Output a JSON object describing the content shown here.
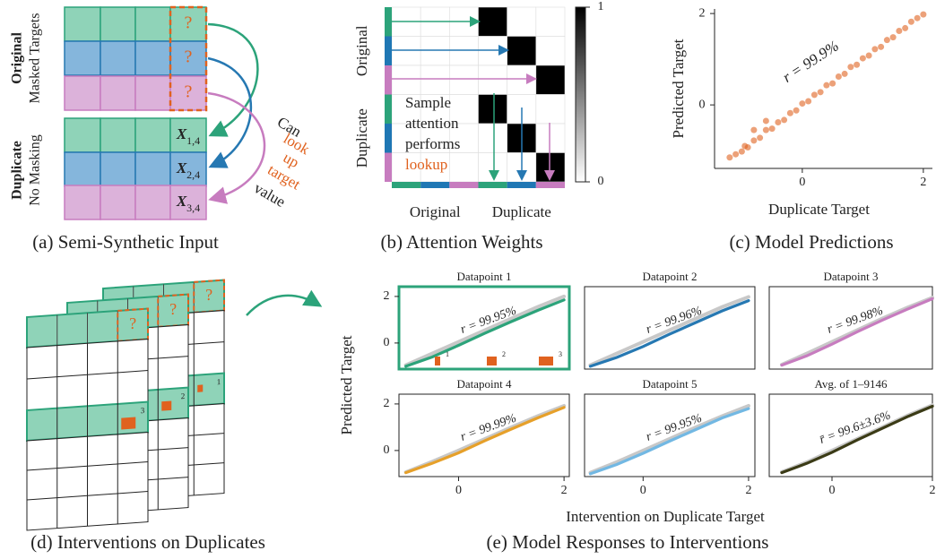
{
  "panel_a": {
    "caption": "(a) Semi-Synthetic Input",
    "group_labels": [
      {
        "bold": "Original",
        "sub": "Masked Targets"
      },
      {
        "bold": "Duplicate",
        "sub": "No Masking"
      }
    ],
    "masked": [
      "?",
      "?",
      "?"
    ],
    "cells": [
      {
        "symbol": "X",
        "sub": "1,4"
      },
      {
        "symbol": "X",
        "sub": "2,4"
      },
      {
        "symbol": "X",
        "sub": "3,4"
      }
    ],
    "annotation": [
      "Can",
      "look",
      "up",
      "target",
      "value"
    ]
  },
  "panel_b": {
    "caption": "(b) Attention Weights",
    "annotation": [
      "Sample",
      "attention",
      "performs",
      "lookup"
    ]
  },
  "panel_c": {
    "caption": "(c) Model Predictions"
  },
  "panel_d": {
    "caption": "(d) Interventions on Duplicates",
    "masked": [
      "?",
      "?",
      "?"
    ],
    "intervention_labels": [
      "1",
      "2",
      "3"
    ]
  },
  "panel_e": {
    "caption": "(e) Model Responses to Interventions",
    "ylabel": "Predicted Target",
    "xlabel": "Intervention on Duplicate Target"
  },
  "chart_data": [
    {
      "type": "heatmap",
      "y_groups": [
        "Original",
        "Duplicate"
      ],
      "x_groups": [
        "Original",
        "Duplicate"
      ],
      "values": [
        [
          0,
          0,
          0,
          1,
          0,
          0
        ],
        [
          0,
          0,
          0,
          0,
          1,
          0
        ],
        [
          0,
          0,
          0,
          0,
          0,
          1
        ],
        [
          0,
          0,
          0,
          1,
          0,
          0
        ],
        [
          0,
          0,
          0,
          0,
          1,
          0
        ],
        [
          0,
          0,
          0,
          0,
          0,
          1
        ]
      ],
      "strip_colors": [
        "#2ca37a",
        "#1f77b4",
        "#c77cbf",
        "#2ca37a",
        "#1f77b4",
        "#c77cbf"
      ],
      "clim": [
        0,
        1
      ],
      "cticks": [
        0,
        1
      ]
    },
    {
      "type": "scatter",
      "xlabel": "Duplicate Target",
      "ylabel": "Predicted Target",
      "annotation": "r = 99.9%",
      "color": "#e0621f",
      "x": [
        -1.2,
        -1.1,
        -1.0,
        -0.95,
        -0.9,
        -0.8,
        -0.7,
        -0.6,
        -0.5,
        -0.4,
        -0.3,
        -0.2,
        -0.1,
        0.0,
        0.1,
        0.2,
        0.3,
        0.4,
        0.5,
        0.6,
        0.7,
        0.8,
        0.9,
        1.0,
        1.1,
        1.2,
        1.3,
        1.4,
        1.5,
        1.6,
        1.7,
        1.8,
        1.9,
        2.0,
        -0.8,
        -0.6
      ],
      "values": [
        -1.15,
        -1.08,
        -1.02,
        -0.9,
        -0.93,
        -0.78,
        -0.72,
        -0.55,
        -0.52,
        -0.38,
        -0.33,
        -0.18,
        -0.12,
        0.03,
        0.08,
        0.22,
        0.28,
        0.43,
        0.47,
        0.62,
        0.68,
        0.83,
        0.88,
        1.02,
        1.08,
        1.22,
        1.27,
        1.42,
        1.48,
        1.62,
        1.68,
        1.82,
        1.9,
        1.98,
        -0.55,
        -0.35
      ],
      "xlim": [
        -1.45,
        2.15
      ],
      "ylim": [
        -1.39,
        2.1
      ],
      "xticks": [
        0,
        2
      ],
      "yticks": [
        0,
        2
      ]
    },
    {
      "type": "line",
      "title": "Datapoint 1",
      "annotation": "r = 99.95%",
      "highlight": "#2ca37a",
      "markers": [
        "1",
        "2",
        "3"
      ],
      "x": [
        -1,
        -0.5,
        0,
        0.5,
        1,
        1.5,
        2
      ],
      "xlim": [
        -1.13,
        2.1
      ],
      "ylim": [
        -1.12,
        2.42
      ],
      "yticks": [
        0,
        2
      ],
      "series": [
        {
          "color": "#c8c8c8",
          "values": [
            -0.95,
            -0.45,
            0.05,
            0.55,
            1.05,
            1.55,
            2.0
          ]
        },
        {
          "color": "#2ca37a",
          "values": [
            -1.0,
            -0.6,
            -0.1,
            0.42,
            0.92,
            1.4,
            1.85
          ]
        }
      ]
    },
    {
      "type": "line",
      "title": "Datapoint 2",
      "annotation": "r = 99.96%",
      "x": [
        -1,
        -0.5,
        0,
        0.5,
        1,
        1.5,
        2
      ],
      "xlim": [
        -1.11,
        2.12
      ],
      "ylim": [
        -1.12,
        2.42
      ],
      "series": [
        {
          "color": "#c8c8c8",
          "values": [
            -0.95,
            -0.45,
            0.05,
            0.55,
            1.05,
            1.55,
            1.98
          ]
        },
        {
          "color": "#2678b2",
          "values": [
            -1.0,
            -0.62,
            -0.15,
            0.38,
            0.88,
            1.38,
            1.82
          ]
        }
      ]
    },
    {
      "type": "line",
      "title": "Datapoint 3",
      "annotation": "r = 99.98%",
      "x": [
        -1,
        -0.5,
        0,
        0.5,
        1,
        1.5,
        2
      ],
      "xlim": [
        -1.25,
        2.0
      ],
      "ylim": [
        -1.12,
        2.42
      ],
      "series": [
        {
          "color": "#c8c8c8",
          "values": [
            -0.93,
            -0.45,
            0.05,
            0.55,
            1.05,
            1.52,
            1.95
          ]
        },
        {
          "color": "#c77cbf",
          "values": [
            -0.95,
            -0.55,
            -0.05,
            0.48,
            0.98,
            1.45,
            1.9
          ]
        }
      ]
    },
    {
      "type": "line",
      "title": "Datapoint 4",
      "annotation": "r = 99.99%",
      "x": [
        -1,
        -0.5,
        0,
        0.5,
        1,
        1.5,
        2
      ],
      "xlim": [
        -1.13,
        2.1
      ],
      "ylim": [
        -1.12,
        2.42
      ],
      "xticks": [
        0,
        2
      ],
      "yticks": [
        0,
        2
      ],
      "series": [
        {
          "color": "#c8c8c8",
          "values": [
            -0.93,
            -0.48,
            0.0,
            0.5,
            1.0,
            1.48,
            1.92
          ]
        },
        {
          "color": "#e6a02a",
          "values": [
            -0.95,
            -0.55,
            -0.1,
            0.42,
            0.92,
            1.4,
            1.85
          ]
        }
      ]
    },
    {
      "type": "line",
      "title": "Datapoint 5",
      "annotation": "r = 99.95%",
      "x": [
        -1,
        -0.5,
        0,
        0.5,
        1,
        1.5,
        2
      ],
      "xlim": [
        -1.11,
        2.12
      ],
      "ylim": [
        -1.12,
        2.42
      ],
      "xticks": [
        0,
        2
      ],
      "series": [
        {
          "color": "#c8c8c8",
          "values": [
            -0.95,
            -0.5,
            0.0,
            0.5,
            1.0,
            1.48,
            1.92
          ]
        },
        {
          "color": "#72b8e3",
          "values": [
            -1.0,
            -0.6,
            -0.12,
            0.4,
            0.9,
            1.4,
            1.8
          ]
        }
      ]
    },
    {
      "type": "line",
      "title": "Avg. of 1–9146",
      "annotation": "r̄ = 99.6±3.6%",
      "x": [
        -1,
        -0.5,
        0,
        0.5,
        1,
        1.5,
        2
      ],
      "xlim": [
        -1.25,
        2.0
      ],
      "ylim": [
        -1.12,
        2.42
      ],
      "xticks": [
        0,
        2
      ],
      "series": [
        {
          "color": "#c8c8c8",
          "values": [
            -0.92,
            -0.5,
            0.0,
            0.5,
            1.0,
            1.5,
            1.95
          ]
        },
        {
          "color": "#3b3b16",
          "values": [
            -0.95,
            -0.55,
            -0.08,
            0.45,
            0.95,
            1.45,
            1.9
          ]
        }
      ]
    }
  ]
}
